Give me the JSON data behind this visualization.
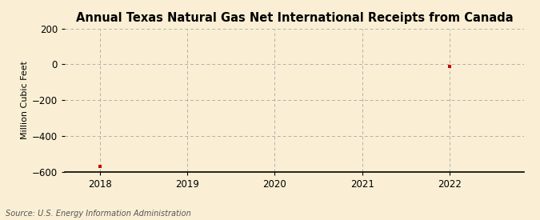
{
  "title": "Annual Texas Natural Gas Net International Receipts from Canada",
  "ylabel": "Million Cubic Feet",
  "source": "Source: U.S. Energy Information Administration",
  "years": [
    2018,
    2022
  ],
  "values": [
    -570,
    -10
  ],
  "xlim": [
    2017.6,
    2022.85
  ],
  "ylim": [
    -600,
    200
  ],
  "yticks": [
    -600,
    -400,
    -200,
    0,
    200
  ],
  "xticks": [
    2018,
    2019,
    2020,
    2021,
    2022
  ],
  "bg_color": "#faefd4",
  "plot_bg_color": "#faefd4",
  "marker_color": "#cc0000",
  "grid_color": "#aaaaaa",
  "title_fontsize": 10.5,
  "label_fontsize": 8,
  "tick_fontsize": 8.5,
  "source_fontsize": 7
}
